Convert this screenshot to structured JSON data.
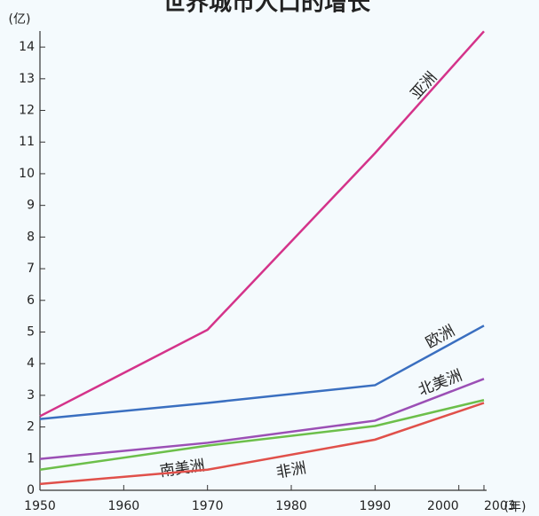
{
  "chart_data": {
    "type": "line",
    "title": "世界城市人口的增长",
    "y_label": "(亿)",
    "x_label": "(年)",
    "x": [
      1950,
      1970,
      1990,
      2003
    ],
    "series": [
      {
        "name": "亚洲",
        "color": "#d4338a",
        "values": [
          2.34,
          5.07,
          10.65,
          14.5
        ]
      },
      {
        "name": "欧洲",
        "color": "#3a6fc0",
        "values": [
          2.25,
          2.76,
          3.32,
          5.2
        ]
      },
      {
        "name": "北美洲",
        "color": "#9b4fb5",
        "values": [
          0.99,
          1.5,
          2.2,
          3.52
        ]
      },
      {
        "name": "南美洲",
        "color": "#6cbf4a",
        "values": [
          0.65,
          1.41,
          2.03,
          2.85
        ]
      },
      {
        "name": "非洲",
        "color": "#e0504a",
        "values": [
          0.2,
          0.65,
          1.6,
          2.76
        ]
      }
    ],
    "xlim": [
      1950,
      2003
    ],
    "xticks": [
      1950,
      1960,
      1970,
      1980,
      1990,
      2000,
      2003
    ],
    "ylim": [
      0,
      14.6
    ],
    "yticks": [
      0,
      1,
      2,
      3,
      4,
      5,
      6,
      7,
      8,
      9,
      10,
      11,
      12,
      13,
      14
    ]
  }
}
